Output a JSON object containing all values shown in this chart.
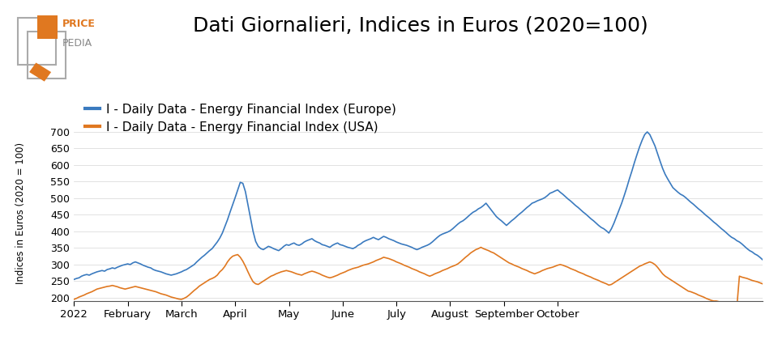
{
  "title": "Dati Giornalieri, Indices in Euros (2020=100)",
  "ylabel": "Indices in Euros (2020 = 100)",
  "legend_europe": "I - Daily Data - Energy Financial Index (Europe)",
  "legend_usa": "I - Daily Data - Energy Financial Index (USA)",
  "color_europe": "#3a7abf",
  "color_usa": "#e07820",
  "background_color": "#ffffff",
  "ylim": [
    190,
    720
  ],
  "yticks": [
    200,
    250,
    300,
    350,
    400,
    450,
    500,
    550,
    600,
    650,
    700
  ],
  "title_fontsize": 18,
  "legend_fontsize": 11,
  "xtick_labels": [
    "2022",
    "February",
    "March",
    "April",
    "May",
    "June",
    "July",
    "August",
    "September",
    "October"
  ],
  "xtick_positions": [
    0,
    21,
    42,
    63,
    84,
    105,
    126,
    147,
    168,
    189
  ],
  "europe_data": [
    255,
    258,
    260,
    265,
    268,
    270,
    268,
    272,
    275,
    278,
    280,
    282,
    280,
    285,
    287,
    290,
    288,
    292,
    295,
    298,
    300,
    302,
    300,
    305,
    308,
    305,
    302,
    298,
    295,
    292,
    290,
    285,
    282,
    280,
    278,
    275,
    272,
    270,
    268,
    270,
    272,
    275,
    278,
    282,
    285,
    290,
    295,
    300,
    308,
    315,
    322,
    328,
    335,
    342,
    348,
    358,
    368,
    380,
    395,
    415,
    435,
    458,
    480,
    502,
    525,
    548,
    545,
    520,
    480,
    440,
    400,
    370,
    355,
    348,
    345,
    350,
    355,
    352,
    348,
    345,
    342,
    348,
    355,
    360,
    358,
    362,
    365,
    360,
    358,
    362,
    368,
    372,
    375,
    378,
    372,
    368,
    365,
    360,
    358,
    355,
    352,
    358,
    362,
    365,
    360,
    358,
    355,
    352,
    350,
    348,
    352,
    358,
    362,
    368,
    372,
    375,
    378,
    382,
    378,
    375,
    380,
    385,
    382,
    378,
    375,
    372,
    368,
    365,
    362,
    360,
    358,
    355,
    352,
    348,
    345,
    348,
    352,
    355,
    358,
    362,
    368,
    375,
    382,
    388,
    392,
    395,
    398,
    402,
    408,
    415,
    422,
    428,
    432,
    438,
    445,
    452,
    458,
    462,
    468,
    472,
    478,
    485,
    475,
    465,
    455,
    445,
    438,
    432,
    425,
    418,
    425,
    432,
    438,
    445,
    452,
    458,
    465,
    472,
    478,
    485,
    488,
    492,
    495,
    498,
    502,
    508,
    515,
    518,
    522,
    525,
    518,
    512,
    505,
    498,
    492,
    485,
    478,
    472,
    465,
    458,
    452,
    445,
    438,
    432,
    425,
    418,
    412,
    408,
    402,
    395,
    408,
    425,
    445,
    465,
    485,
    508,
    532,
    558,
    582,
    608,
    632,
    655,
    675,
    692,
    700,
    692,
    675,
    658,
    635,
    612,
    590,
    572,
    558,
    545,
    532,
    525,
    518,
    512,
    508,
    502,
    495,
    488,
    482,
    475,
    468,
    462,
    455,
    448,
    442,
    435,
    428,
    422,
    415,
    408,
    402,
    395,
    388,
    382,
    378,
    372,
    368,
    362,
    355,
    348,
    342,
    338,
    332,
    328,
    322,
    315
  ],
  "usa_data": [
    195,
    198,
    202,
    205,
    208,
    212,
    215,
    218,
    222,
    226,
    228,
    230,
    232,
    234,
    235,
    237,
    235,
    233,
    230,
    228,
    226,
    228,
    230,
    232,
    234,
    232,
    230,
    228,
    226,
    224,
    222,
    220,
    218,
    215,
    212,
    210,
    208,
    205,
    202,
    200,
    198,
    196,
    195,
    198,
    202,
    208,
    215,
    222,
    228,
    235,
    240,
    245,
    250,
    255,
    258,
    262,
    268,
    278,
    285,
    295,
    308,
    318,
    325,
    328,
    330,
    322,
    310,
    295,
    278,
    262,
    248,
    242,
    240,
    245,
    250,
    255,
    260,
    265,
    268,
    272,
    275,
    278,
    280,
    282,
    280,
    278,
    275,
    272,
    270,
    268,
    272,
    275,
    278,
    280,
    278,
    275,
    272,
    268,
    265,
    262,
    260,
    262,
    265,
    268,
    272,
    275,
    278,
    282,
    285,
    288,
    290,
    292,
    295,
    298,
    300,
    302,
    305,
    308,
    312,
    315,
    318,
    322,
    320,
    318,
    315,
    312,
    308,
    305,
    302,
    298,
    295,
    292,
    288,
    285,
    282,
    278,
    275,
    272,
    268,
    265,
    268,
    272,
    275,
    278,
    282,
    285,
    288,
    292,
    295,
    298,
    302,
    308,
    315,
    322,
    328,
    335,
    340,
    345,
    348,
    352,
    348,
    345,
    342,
    338,
    335,
    330,
    325,
    320,
    315,
    310,
    305,
    302,
    298,
    295,
    292,
    288,
    285,
    282,
    278,
    275,
    272,
    275,
    278,
    282,
    285,
    288,
    290,
    292,
    295,
    298,
    300,
    298,
    295,
    292,
    288,
    285,
    282,
    278,
    275,
    272,
    268,
    265,
    262,
    258,
    255,
    252,
    248,
    245,
    242,
    238,
    240,
    245,
    250,
    255,
    260,
    265,
    270,
    275,
    280,
    285,
    290,
    295,
    298,
    302,
    305,
    308,
    305,
    300,
    292,
    282,
    272,
    265,
    260,
    255,
    250,
    245,
    240,
    235,
    230,
    225,
    220,
    218,
    215,
    212,
    208,
    205,
    202,
    198,
    195,
    192,
    190,
    190,
    188,
    185,
    185,
    182,
    180,
    178,
    175,
    172,
    265,
    262,
    260,
    258,
    255,
    252,
    250,
    248,
    245,
    242
  ]
}
